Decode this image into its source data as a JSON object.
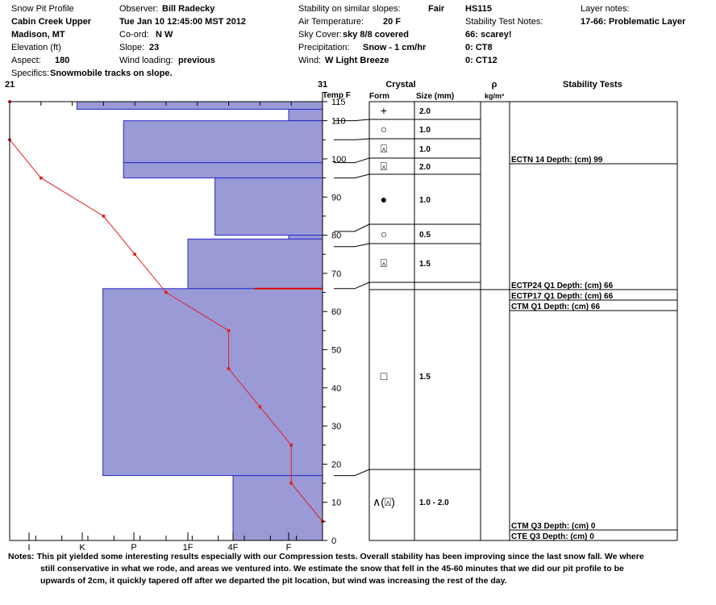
{
  "header": {
    "rows": [
      [
        {
          "label": "Snow Pit Profile",
          "value": ""
        },
        {
          "label": "Observer:",
          "value": "Bill Radecky"
        },
        {
          "label": "Stability on similar slopes:",
          "value": "Fair"
        },
        {
          "label": "",
          "value": "HS115"
        },
        {
          "label": "Layer notes:",
          "value": ""
        }
      ],
      [
        {
          "label": "",
          "value": "Cabin Creek Upper"
        },
        {
          "label": "",
          "value": "Tue Jan 10 12:45:00 MST 2012"
        },
        {
          "label": "Air Temperature:",
          "value": "20 F"
        },
        {
          "label": "Stability Test Notes:",
          "value": ""
        },
        {
          "label": "",
          "value": "17-66: Problematic Layer"
        }
      ],
      [
        {
          "label": "",
          "value": "Madison, MT"
        },
        {
          "label": "Co-ord:",
          "value": "N  W"
        },
        {
          "label": "Sky Cover:",
          "value": "sky 8/8 covered"
        },
        {
          "label": "",
          "value": "66: scarey!"
        },
        {
          "label": "",
          "value": ""
        }
      ],
      [
        {
          "label": "Elevation (ft)",
          "value": ""
        },
        {
          "label": "Slope:",
          "value": "23"
        },
        {
          "label": "Precipitation:",
          "value": "Snow - 1 cm/hr"
        },
        {
          "label": "",
          "value": "0: CT8"
        },
        {
          "label": "",
          "value": ""
        }
      ],
      [
        {
          "label": "Aspect:",
          "value": "180"
        },
        {
          "label": "Wind loading:",
          "value": "previous"
        },
        {
          "label": "Wind:",
          "value": "W Light Breeze"
        },
        {
          "label": "",
          "value": "0: CT12"
        },
        {
          "label": "",
          "value": ""
        }
      ]
    ],
    "specifics_label": "Specifics:",
    "specifics_value": "Snowmobile tracks on slope."
  },
  "chart_data": {
    "type": "snow_profile",
    "temp_axis": {
      "label": "Temp F",
      "min": 21,
      "max": 31,
      "min_label": "21",
      "max_label": "31"
    },
    "depth_axis": {
      "min": 0,
      "max": 115,
      "ticks": [
        0,
        10,
        20,
        30,
        40,
        50,
        60,
        70,
        80,
        90,
        100,
        110,
        115
      ]
    },
    "hardness_axis": {
      "categories": [
        "I",
        "K",
        "P",
        "1F",
        "4F",
        "F"
      ],
      "note": "hand hardness; bars extend from right"
    },
    "hardness_ticks": [
      "I",
      "K",
      "P",
      "1F",
      "4F",
      "F"
    ],
    "temperature_profile": [
      {
        "depth": 115,
        "temp": 21.0
      },
      {
        "depth": 105,
        "temp": 21.0
      },
      {
        "depth": 95,
        "temp": 22.0
      },
      {
        "depth": 85,
        "temp": 24.0
      },
      {
        "depth": 75,
        "temp": 25.0
      },
      {
        "depth": 65,
        "temp": 26.0
      },
      {
        "depth": 55,
        "temp": 28.0
      },
      {
        "depth": 45,
        "temp": 28.0
      },
      {
        "depth": 35,
        "temp": 29.0
      },
      {
        "depth": 25,
        "temp": 30.0
      },
      {
        "depth": 15,
        "temp": 30.0
      },
      {
        "depth": 5,
        "temp": 31.0
      }
    ],
    "hardness_layers": [
      {
        "top": 115,
        "bottom": 113,
        "hardness_index": 0.9
      },
      {
        "top": 113,
        "bottom": 110,
        "hardness_index": 5.0
      },
      {
        "top": 110,
        "bottom": 99,
        "hardness_index": 1.8
      },
      {
        "top": 99,
        "bottom": 95,
        "hardness_index": 1.8
      },
      {
        "top": 95,
        "bottom": 80,
        "hardness_index": 3.6
      },
      {
        "top": 80,
        "bottom": 79,
        "hardness_index": 5.0
      },
      {
        "top": 79,
        "bottom": 66,
        "hardness_index": 3.0
      },
      {
        "top": 66,
        "bottom": 17,
        "hardness_index": 1.4
      },
      {
        "top": 17,
        "bottom": 0,
        "hardness_index": 4.0
      }
    ],
    "critical_layer_depth": 66,
    "columns": {
      "crystal": "Crystal",
      "form": "Form",
      "size": "Size (mm)",
      "rho": "ρ",
      "rho_unit": "kg/m³",
      "stability": "Stability Tests"
    },
    "crystal_layers": [
      {
        "top": 115,
        "bottom": 110,
        "form_symbol": "+",
        "size": "2.0"
      },
      {
        "top": 110,
        "bottom": 105,
        "form_symbol": "○",
        "size": "1.0"
      },
      {
        "top": 105,
        "bottom": 99,
        "form_symbol": "⍓",
        "size": "1.0"
      },
      {
        "top": 99,
        "bottom": 95,
        "form_symbol": "⍓",
        "size": "2.0"
      },
      {
        "top": 95,
        "bottom": 81,
        "form_symbol": "●",
        "size": "1.0"
      },
      {
        "top": 81,
        "bottom": 77,
        "form_symbol": "○",
        "size": "0.5"
      },
      {
        "top": 77,
        "bottom": 66,
        "form_symbol": "⍓",
        "size": "1.5"
      },
      {
        "top": 66,
        "bottom": 17,
        "form_symbol": "□",
        "size": "1.5"
      },
      {
        "top": 17,
        "bottom": 0,
        "form_symbol": "∧(⍓)",
        "size": "1.0 - 2.0"
      }
    ],
    "stability_tests": [
      {
        "depth": 99,
        "label": "ECTN 14  Depth: (cm) 99"
      },
      {
        "depth": 66,
        "label": "ECTP24 Q1 Depth: (cm) 66"
      },
      {
        "depth": 66,
        "label": "ECTP17 Q1 Depth: (cm) 66"
      },
      {
        "depth": 66,
        "label": "CTM Q1 Depth: (cm) 66"
      },
      {
        "depth": 0,
        "label": "CTM Q3 Depth: (cm) 0"
      },
      {
        "depth": 0,
        "label": "CTE Q3 Depth: (cm) 0"
      }
    ]
  },
  "notes": {
    "label": "Notes:",
    "line1": "This pit yielded some interesting results especially with our Compression tests.  Overall stability has been improving since the last snow fall.  We where",
    "line2": "still conservative in what we rode, and areas we ventured into.  We estimate the snow that fell in the 45-60 minutes that we did our pit profile to be",
    "line3": "upwards of 2cm, it quickly tapered off after we departed the pit location, but wind was increasing the rest of the day."
  },
  "colors": {
    "bar_fill": "#9a9ad6",
    "bar_stroke": "#2a2acc",
    "temp_line": "#e02020",
    "critical": "#e00000"
  }
}
